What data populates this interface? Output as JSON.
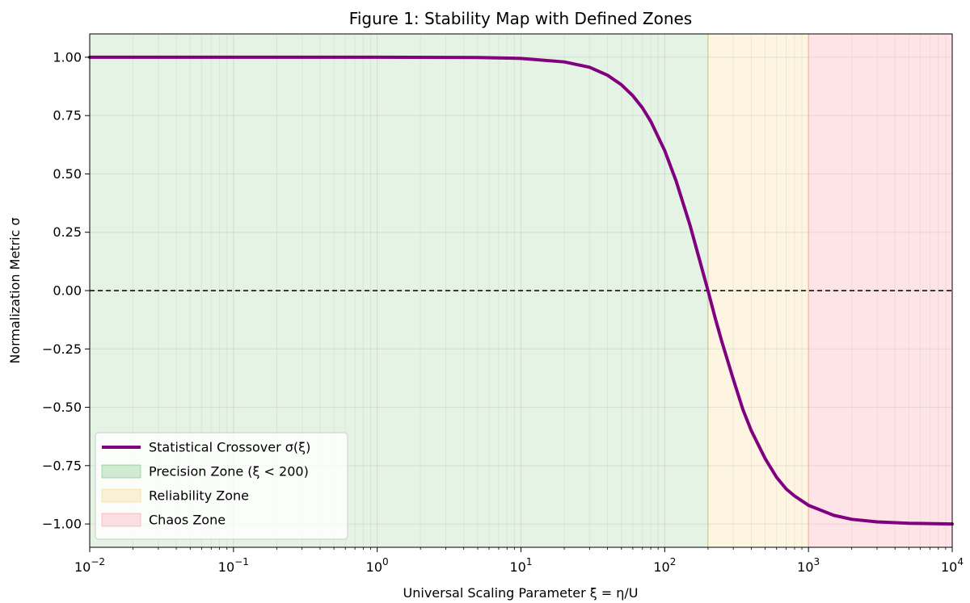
{
  "chart_data": {
    "type": "line",
    "title": "Figure 1: Stability Map with Defined Zones",
    "xlabel": "Universal Scaling Parameter ξ = η/U",
    "ylabel": "Normalization Metric σ",
    "xscale": "log",
    "xlim": [
      0.01,
      10000
    ],
    "ylim": [
      -1.1,
      1.1
    ],
    "x_ticks": [
      {
        "value": 0.01,
        "base": "10",
        "exp": "−2"
      },
      {
        "value": 0.1,
        "base": "10",
        "exp": "−1"
      },
      {
        "value": 1,
        "base": "10",
        "exp": "0"
      },
      {
        "value": 10,
        "base": "10",
        "exp": "1"
      },
      {
        "value": 100,
        "base": "10",
        "exp": "2"
      },
      {
        "value": 1000,
        "base": "10",
        "exp": "3"
      },
      {
        "value": 10000,
        "base": "10",
        "exp": "4"
      }
    ],
    "y_ticks": [
      {
        "value": 1.0,
        "label": "1.00"
      },
      {
        "value": 0.75,
        "label": "0.75"
      },
      {
        "value": 0.5,
        "label": "0.50"
      },
      {
        "value": 0.25,
        "label": "0.25"
      },
      {
        "value": 0.0,
        "label": "0.00"
      },
      {
        "value": -0.25,
        "label": "−0.25"
      },
      {
        "value": -0.5,
        "label": "−0.50"
      },
      {
        "value": -0.75,
        "label": "−0.75"
      },
      {
        "value": -1.0,
        "label": "−1.00"
      }
    ],
    "grid": true,
    "reference_line": {
      "y": 0,
      "style": "dashed",
      "color": "#000000"
    },
    "zones": [
      {
        "name": "Precision Zone (ξ < 200)",
        "from": 0.01,
        "to": 200,
        "color": "#2ca02c",
        "opacity": 0.13
      },
      {
        "name": "Reliability Zone",
        "from": 200,
        "to": 1000,
        "color": "#f5c242",
        "opacity": 0.16
      },
      {
        "name": "Chaos Zone",
        "from": 1000,
        "to": 10000,
        "color": "#ff6b7a",
        "opacity": 0.18
      }
    ],
    "series": [
      {
        "name": "Statistical Crossover σ(ξ)",
        "color": "#800080",
        "x": [
          0.01,
          0.1,
          1,
          5,
          10,
          20,
          30,
          40,
          50,
          60,
          70,
          80,
          100,
          120,
          150,
          175,
          200,
          225,
          250,
          300,
          350,
          400,
          500,
          600,
          700,
          800,
          1000,
          1500,
          2000,
          3000,
          5000,
          10000
        ],
        "y": [
          1.0,
          1.0,
          1.0,
          0.999,
          0.995,
          0.98,
          0.957,
          0.923,
          0.882,
          0.835,
          0.783,
          0.725,
          0.6,
          0.47,
          0.28,
          0.13,
          0.0,
          -0.12,
          -0.22,
          -0.38,
          -0.51,
          -0.6,
          -0.72,
          -0.8,
          -0.85,
          -0.88,
          -0.92,
          -0.963,
          -0.98,
          -0.991,
          -0.997,
          -1.0
        ]
      }
    ],
    "legend": {
      "position": "lower-left",
      "entries": [
        {
          "label": "Statistical Crossover σ(ξ)",
          "kind": "line",
          "color": "#800080"
        },
        {
          "label": "Precision Zone (ξ < 200)",
          "kind": "patch",
          "color": "#2ca02c"
        },
        {
          "label": "Reliability Zone",
          "kind": "patch",
          "color": "#f5c242"
        },
        {
          "label": "Chaos Zone",
          "kind": "patch",
          "color": "#ff6b7a"
        }
      ]
    }
  }
}
